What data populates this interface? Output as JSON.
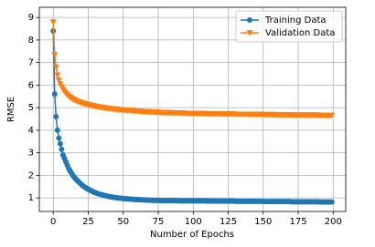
{
  "chart_data": {
    "type": "line",
    "x_label": "Number of Epochs",
    "y_label": "RMSE",
    "x": [
      0,
      1,
      2,
      3,
      4,
      5,
      6,
      7,
      8,
      9,
      10,
      11,
      12,
      13,
      14,
      15,
      16,
      17,
      18,
      19,
      20,
      21,
      22,
      23,
      24,
      25,
      26,
      27,
      28,
      29,
      30,
      31,
      32,
      33,
      34,
      35,
      36,
      37,
      38,
      39,
      40,
      41,
      42,
      43,
      44,
      45,
      46,
      47,
      48,
      49,
      50,
      51,
      52,
      53,
      54,
      55,
      56,
      57,
      58,
      59,
      60,
      61,
      62,
      63,
      64,
      65,
      66,
      67,
      68,
      69,
      70,
      71,
      72,
      73,
      74,
      75,
      76,
      77,
      78,
      79,
      80,
      81,
      82,
      83,
      84,
      85,
      86,
      87,
      88,
      89,
      90,
      91,
      92,
      93,
      94,
      95,
      96,
      97,
      98,
      99,
      100,
      101,
      102,
      103,
      104,
      105,
      106,
      107,
      108,
      109,
      110,
      111,
      112,
      113,
      114,
      115,
      116,
      117,
      118,
      119,
      120,
      121,
      122,
      123,
      124,
      125,
      126,
      127,
      128,
      129,
      130,
      131,
      132,
      133,
      134,
      135,
      136,
      137,
      138,
      139,
      140,
      141,
      142,
      143,
      144,
      145,
      146,
      147,
      148,
      149,
      150,
      151,
      152,
      153,
      154,
      155,
      156,
      157,
      158,
      159,
      160,
      161,
      162,
      163,
      164,
      165,
      166,
      167,
      168,
      169,
      170,
      171,
      172,
      173,
      174,
      175,
      176,
      177,
      178,
      179,
      180,
      181,
      182,
      183,
      184,
      185,
      186,
      187,
      188,
      189,
      190,
      191,
      192,
      193,
      194,
      195,
      196,
      197,
      198,
      199
    ],
    "series": [
      {
        "name": "Training Data",
        "color": "#1f77b4",
        "marker": "o",
        "values": [
          8.4,
          5.6,
          4.6,
          4.0,
          3.65,
          3.4,
          3.15,
          2.9,
          2.75,
          2.6,
          2.45,
          2.3,
          2.2,
          2.1,
          2.0,
          1.92,
          1.85,
          1.78,
          1.72,
          1.66,
          1.6,
          1.55,
          1.5,
          1.46,
          1.42,
          1.38,
          1.35,
          1.32,
          1.29,
          1.26,
          1.24,
          1.21,
          1.19,
          1.17,
          1.15,
          1.13,
          1.12,
          1.1,
          1.09,
          1.07,
          1.06,
          1.05,
          1.04,
          1.03,
          1.02,
          1.01,
          1.0,
          0.99,
          0.99,
          0.98,
          0.97,
          0.97,
          0.96,
          0.96,
          0.95,
          0.95,
          0.94,
          0.94,
          0.93,
          0.93,
          0.93,
          0.92,
          0.92,
          0.92,
          0.91,
          0.91,
          0.91,
          0.9,
          0.9,
          0.9,
          0.9,
          0.89,
          0.89,
          0.89,
          0.89,
          0.89,
          0.88,
          0.88,
          0.88,
          0.88,
          0.88,
          0.88,
          0.88,
          0.88,
          0.88,
          0.88,
          0.88,
          0.88,
          0.88,
          0.88,
          0.87,
          0.87,
          0.87,
          0.87,
          0.87,
          0.87,
          0.87,
          0.87,
          0.87,
          0.87,
          0.87,
          0.87,
          0.87,
          0.87,
          0.87,
          0.87,
          0.87,
          0.87,
          0.87,
          0.87,
          0.86,
          0.86,
          0.86,
          0.86,
          0.86,
          0.86,
          0.86,
          0.86,
          0.86,
          0.86,
          0.86,
          0.86,
          0.86,
          0.86,
          0.86,
          0.86,
          0.86,
          0.86,
          0.86,
          0.86,
          0.85,
          0.85,
          0.85,
          0.85,
          0.85,
          0.85,
          0.85,
          0.85,
          0.85,
          0.85,
          0.85,
          0.85,
          0.85,
          0.85,
          0.85,
          0.85,
          0.85,
          0.85,
          0.85,
          0.85,
          0.84,
          0.84,
          0.84,
          0.84,
          0.84,
          0.84,
          0.84,
          0.84,
          0.84,
          0.84,
          0.84,
          0.84,
          0.84,
          0.84,
          0.84,
          0.84,
          0.84,
          0.84,
          0.84,
          0.84,
          0.83,
          0.83,
          0.83,
          0.83,
          0.83,
          0.83,
          0.83,
          0.83,
          0.83,
          0.83,
          0.83,
          0.83,
          0.83,
          0.83,
          0.83,
          0.83,
          0.83,
          0.83,
          0.83,
          0.83,
          0.82,
          0.82,
          0.82,
          0.82,
          0.82,
          0.82,
          0.82,
          0.82,
          0.82,
          0.82
        ]
      },
      {
        "name": "Validation Data",
        "color": "#ff7f0e",
        "marker": "v",
        "values": [
          8.8,
          7.35,
          6.8,
          6.45,
          6.22,
          6.05,
          5.92,
          5.81,
          5.72,
          5.64,
          5.57,
          5.51,
          5.46,
          5.42,
          5.38,
          5.35,
          5.32,
          5.29,
          5.26,
          5.24,
          5.22,
          5.2,
          5.18,
          5.16,
          5.15,
          5.13,
          5.12,
          5.1,
          5.09,
          5.08,
          5.06,
          5.05,
          5.04,
          5.03,
          5.02,
          5.01,
          5.0,
          4.99,
          4.98,
          4.97,
          4.96,
          4.96,
          4.95,
          4.94,
          4.93,
          4.93,
          4.92,
          4.92,
          4.91,
          4.9,
          4.9,
          4.89,
          4.89,
          4.88,
          4.88,
          4.87,
          4.87,
          4.86,
          4.86,
          4.85,
          4.85,
          4.85,
          4.84,
          4.84,
          4.83,
          4.83,
          4.83,
          4.82,
          4.82,
          4.82,
          4.81,
          4.81,
          4.81,
          4.8,
          4.8,
          4.8,
          4.79,
          4.79,
          4.79,
          4.78,
          4.78,
          4.78,
          4.78,
          4.78,
          4.78,
          4.77,
          4.77,
          4.77,
          4.77,
          4.77,
          4.76,
          4.76,
          4.76,
          4.76,
          4.76,
          4.75,
          4.75,
          4.75,
          4.75,
          4.75,
          4.74,
          4.74,
          4.74,
          4.74,
          4.74,
          4.74,
          4.74,
          4.74,
          4.74,
          4.74,
          4.73,
          4.73,
          4.73,
          4.73,
          4.73,
          4.73,
          4.73,
          4.73,
          4.73,
          4.73,
          4.72,
          4.72,
          4.72,
          4.72,
          4.72,
          4.72,
          4.72,
          4.72,
          4.72,
          4.72,
          4.71,
          4.71,
          4.71,
          4.71,
          4.71,
          4.71,
          4.71,
          4.71,
          4.71,
          4.71,
          4.7,
          4.7,
          4.7,
          4.7,
          4.7,
          4.7,
          4.7,
          4.7,
          4.7,
          4.7,
          4.69,
          4.69,
          4.69,
          4.69,
          4.69,
          4.69,
          4.69,
          4.69,
          4.69,
          4.69,
          4.68,
          4.68,
          4.68,
          4.68,
          4.68,
          4.68,
          4.68,
          4.68,
          4.68,
          4.68,
          4.67,
          4.67,
          4.67,
          4.67,
          4.67,
          4.67,
          4.67,
          4.67,
          4.67,
          4.67,
          4.67,
          4.67,
          4.67,
          4.67,
          4.67,
          4.67,
          4.67,
          4.67,
          4.67,
          4.67,
          4.66,
          4.66,
          4.66,
          4.66,
          4.66,
          4.66,
          4.66,
          4.66,
          4.66,
          4.66
        ]
      }
    ],
    "xlim": [
      -9.95,
      208.95
    ],
    "xticks": [
      0,
      25,
      50,
      75,
      100,
      125,
      150,
      175,
      200
    ],
    "ylim": [
      0.4,
      9.45
    ],
    "yticks": [
      1,
      2,
      3,
      4,
      5,
      6,
      7,
      8,
      9
    ],
    "grid": true,
    "legend": "upper right"
  }
}
